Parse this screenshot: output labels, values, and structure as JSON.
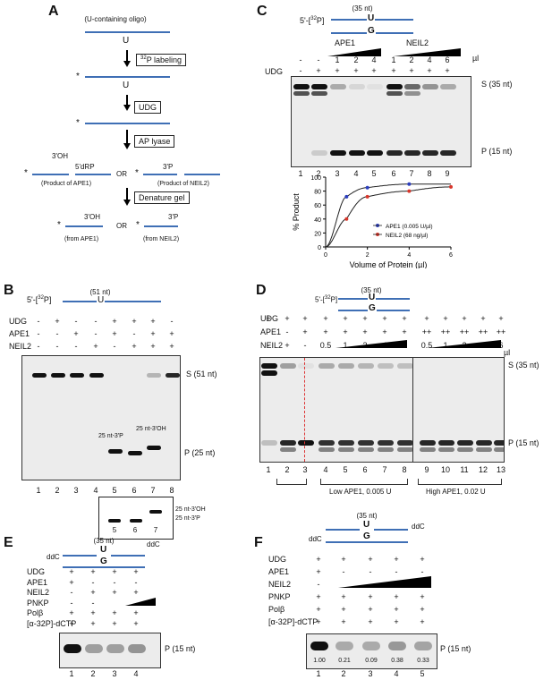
{
  "panelA": {
    "label": "A",
    "oligo": "(U-containing oligo)",
    "u": "U",
    "step1": "32P labeling",
    "step2": "UDG",
    "step3": "AP lyase",
    "ape_3oh": "3'OH",
    "ape_5drp": "5'dRP",
    "or": "OR",
    "neil_3p": "3'P",
    "prod_ape1": "(Product of APE1)",
    "prod_neil2": "(Product of NEIL2)",
    "step4": "Denature gel",
    "from_ape1": "(from APE1)",
    "from_neil2": "(from NEIL2)"
  },
  "panelB": {
    "label": "B",
    "prefix": "5'-[32P]",
    "nt": "(51 nt)",
    "u": "U",
    "rows": [
      {
        "label": "UDG",
        "vals": [
          "-",
          "+",
          "-",
          "-",
          "+",
          "+",
          "+",
          "-"
        ]
      },
      {
        "label": "APE1",
        "vals": [
          "-",
          "-",
          "+",
          "-",
          "+",
          "-",
          "+",
          "+"
        ]
      },
      {
        "label": "NEIL2",
        "vals": [
          "-",
          "-",
          "-",
          "+",
          "-",
          "+",
          "+",
          "+"
        ]
      }
    ],
    "s_label": "S (51 nt)",
    "p_label": "P (25 nt)",
    "band_3p": "25 nt-3'P",
    "band_3oh": "25 nt-3'OH",
    "lanes": [
      "1",
      "2",
      "3",
      "4",
      "5",
      "6",
      "7",
      "8"
    ],
    "inset_lanes": [
      "5",
      "6",
      "7"
    ],
    "inset_3oh": "25 nt-3'OH",
    "inset_3p": "25 nt-3'P"
  },
  "panelC": {
    "label": "C",
    "prefix": "5'-[32P]",
    "nt": "(35 nt)",
    "u": "U",
    "g": "G",
    "ape1": "APE1",
    "neil2": "NEIL2",
    "row1": [
      "-",
      "-",
      "1",
      "2",
      "4",
      "1",
      "2",
      "4",
      "6"
    ],
    "unit": "µl",
    "udg_label": "UDG",
    "row2": [
      "-",
      "+",
      "+",
      "+",
      "+",
      "+",
      "+",
      "+",
      "+"
    ],
    "s_label": "S (35 nt)",
    "p_label": "P (15 nt)",
    "lanes": [
      "1",
      "2",
      "3",
      "4",
      "5",
      "6",
      "7",
      "8",
      "9"
    ],
    "legend_ape1": "APE1 (0.005 U/µl)",
    "legend_neil2": "NEIL2 (68 ng/µl)"
  },
  "chart_data": {
    "type": "line",
    "xlabel": "Volume of Protein (µl)",
    "ylabel": "% Product",
    "xlim": [
      0,
      6
    ],
    "ylim": [
      0,
      100
    ],
    "xticks": [
      "0",
      "2",
      "4",
      "6"
    ],
    "yticks": [
      "0",
      "20",
      "40",
      "60",
      "80",
      "100"
    ],
    "series": [
      {
        "name": "APE1 (0.005 U/µl)",
        "color": "#2c3fbf",
        "x": [
          1,
          2,
          4
        ],
        "y": [
          72,
          85,
          90
        ]
      },
      {
        "name": "NEIL2 (68 ng/µl)",
        "color": "#d9362b",
        "x": [
          1,
          2,
          4,
          6
        ],
        "y": [
          40,
          72,
          80,
          86
        ]
      }
    ]
  },
  "panelD": {
    "label": "D",
    "prefix": "5'-[32P]",
    "nt": "(35 nt)",
    "u": "U",
    "g": "G",
    "rows": [
      {
        "label": "UDG",
        "vals": [
          "+",
          "+",
          "+",
          "+",
          "+",
          "+",
          "+",
          "+",
          "+",
          "+",
          "+",
          "+",
          "+"
        ]
      },
      {
        "label": "APE1",
        "vals": [
          "-",
          "-",
          "+",
          "+",
          "+",
          "+",
          "+",
          "+",
          "++",
          "++",
          "++",
          "++",
          "++"
        ]
      },
      {
        "label": "NEIL2",
        "vals": [
          "-",
          "+",
          "-",
          "0.5",
          "1",
          "2",
          "4",
          "6",
          "0.5",
          "1",
          "2",
          "4",
          "6"
        ]
      }
    ],
    "unit": "µl",
    "s_label": "S (35 nt)",
    "p_label": "P (15 nt)",
    "lanes": [
      "1",
      "2",
      "3",
      "4",
      "5",
      "6",
      "7",
      "8",
      "9",
      "10",
      "11",
      "12",
      "13"
    ],
    "low": "Low APE1, 0.005 U",
    "high": "High APE1, 0.02 U"
  },
  "panelE": {
    "label": "E",
    "nt": "(35 nt)",
    "u": "U",
    "g": "G",
    "ddc": "ddC",
    "rows": [
      {
        "label": "UDG",
        "vals": [
          "+",
          "+",
          "+",
          "+"
        ]
      },
      {
        "label": "APE1",
        "vals": [
          "+",
          "-",
          "-",
          "-"
        ]
      },
      {
        "label": "NEIL2",
        "vals": [
          "-",
          "+",
          "+",
          "+"
        ]
      },
      {
        "label": "PNKP",
        "vals": [
          "-",
          "-",
          "",
          ""
        ]
      },
      {
        "label": "Polβ",
        "vals": [
          "+",
          "+",
          "+",
          "+"
        ]
      },
      {
        "label": "[α-32P]-dCTP",
        "vals": [
          "+",
          "+",
          "+",
          "+"
        ]
      }
    ],
    "p_label": "P (15 nt)",
    "lanes": [
      "1",
      "2",
      "3",
      "4"
    ]
  },
  "panelF": {
    "label": "F",
    "nt": "(35 nt)",
    "u": "U",
    "g": "G",
    "ddc": "ddC",
    "rows": [
      {
        "label": "UDG",
        "vals": [
          "+",
          "+",
          "+",
          "+",
          "+"
        ]
      },
      {
        "label": "APE1",
        "vals": [
          "+",
          "-",
          "-",
          "-",
          "-"
        ]
      },
      {
        "label": "NEIL2",
        "vals": [
          "-",
          "",
          "",
          "",
          ""
        ]
      },
      {
        "label": "PNKP",
        "vals": [
          "+",
          "+",
          "+",
          "+",
          "+"
        ]
      },
      {
        "label": "Polβ",
        "vals": [
          "+",
          "+",
          "+",
          "+",
          "+"
        ]
      },
      {
        "label": "[α-32P]-dCTP",
        "vals": [
          "+",
          "+",
          "+",
          "+",
          "+"
        ]
      }
    ],
    "quant": [
      "1.00",
      "0.21",
      "0.09",
      "0.38",
      "0.33"
    ],
    "p_label": "P (15 nt)",
    "lanes": [
      "1",
      "2",
      "3",
      "4",
      "5"
    ]
  }
}
